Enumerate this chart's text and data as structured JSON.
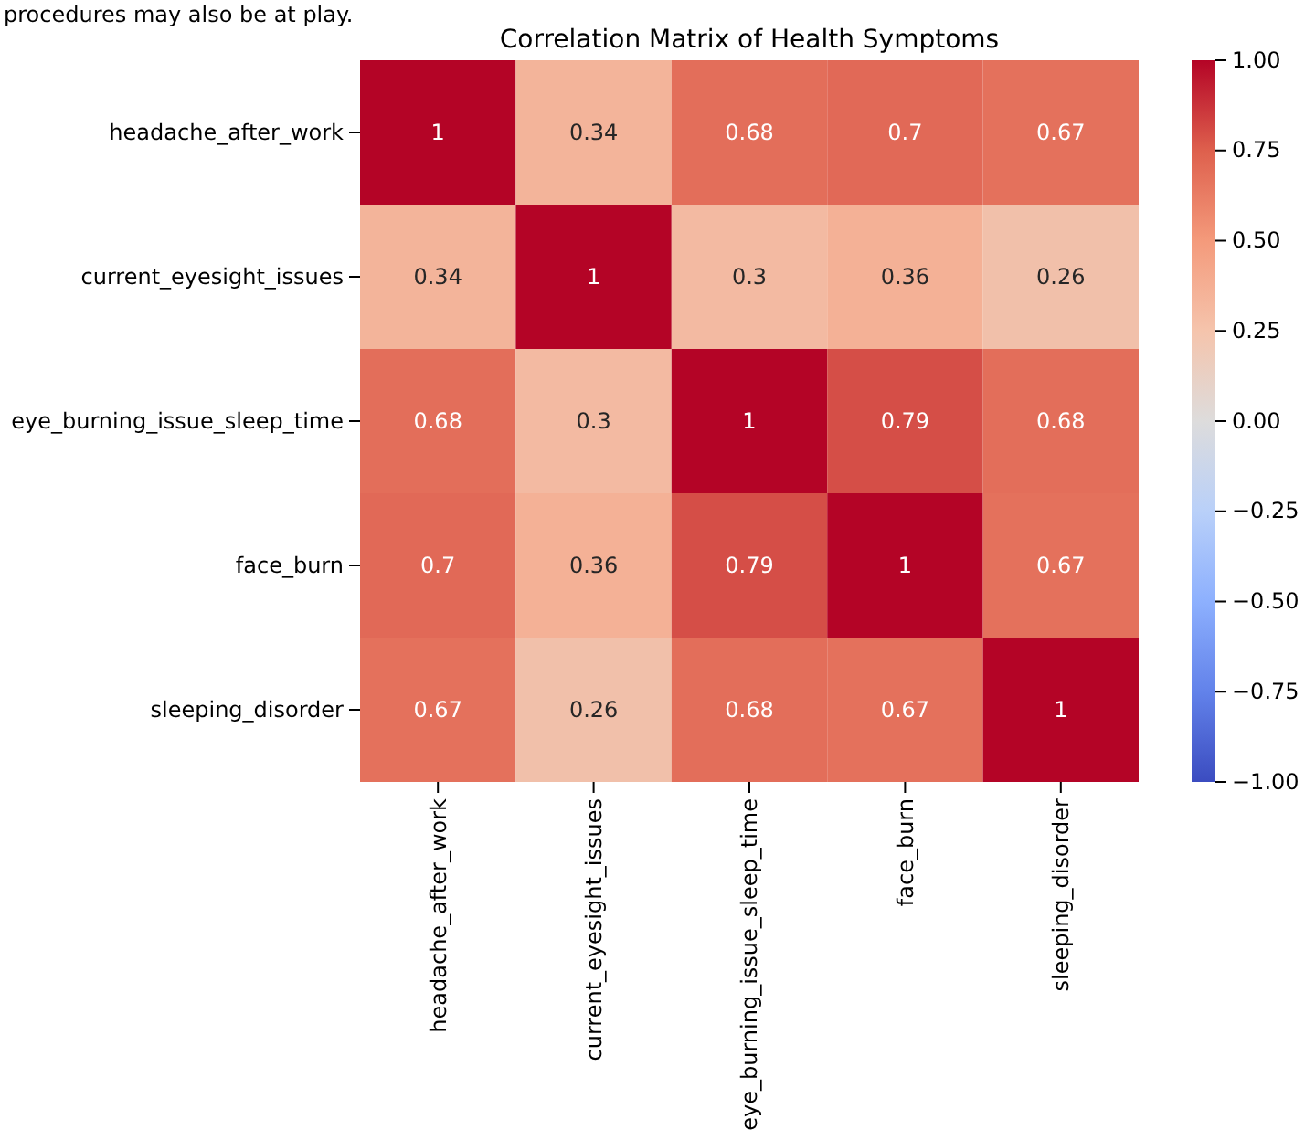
{
  "chart_data": {
    "type": "heatmap",
    "title": "Correlation Matrix of Health Symptoms",
    "annotations": [
      "procedures may also be at play."
    ],
    "categories": [
      "headache_after_work",
      "current_eyesight_issues",
      "eye_burning_issue_sleep_time",
      "face_burn",
      "sleeping_disorder"
    ],
    "y_categories": [
      "headache_after_work",
      "current_eyesight_issues",
      "eye_burning_issue_sleep_time",
      "face_burn",
      "sleeping_disorder"
    ],
    "cells": [
      [
        1,
        0.34,
        0.68,
        0.7,
        0.67
      ],
      [
        0.34,
        1,
        0.3,
        0.36,
        0.26
      ],
      [
        0.68,
        0.3,
        1,
        0.79,
        0.68
      ],
      [
        0.7,
        0.36,
        0.79,
        1,
        0.67
      ],
      [
        0.67,
        0.26,
        0.68,
        0.67,
        1
      ]
    ],
    "data_labels": true,
    "clim": [
      -1,
      1
    ],
    "cticks": [
      {
        "value": 1,
        "label": "1.00"
      },
      {
        "value": 0.75,
        "label": "0.75"
      },
      {
        "value": 0.5,
        "label": "0.50"
      },
      {
        "value": 0.25,
        "label": "0.25"
      },
      {
        "value": 0,
        "label": "0.00"
      },
      {
        "value": -0.25,
        "label": "−0.25"
      },
      {
        "value": -0.5,
        "label": "−0.50"
      },
      {
        "value": -0.75,
        "label": "−0.75"
      },
      {
        "value": -1,
        "label": "−1.00"
      }
    ]
  }
}
